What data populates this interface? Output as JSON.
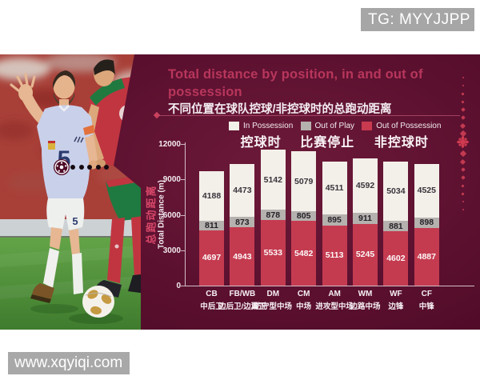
{
  "watermarks": {
    "top": "TG: MYYJJPP",
    "bottom": "www.xqyiqi.com"
  },
  "panel": {
    "title_line1": "Total distance by position, in and out of",
    "title_line2": "possession",
    "subtitle": "不同位置在球队控球/非控球时的总跑动距离"
  },
  "legend": [
    {
      "label_en": "In Possession",
      "label_zh": "控球时",
      "color": "#f3efe9"
    },
    {
      "label_en": "Out of Play",
      "label_zh": "比赛停止",
      "color": "#b5b1ae"
    },
    {
      "label_en": "Out of Possession",
      "label_zh": "非控球时",
      "color": "#c93a4f"
    }
  ],
  "photo": {
    "jersey_number": "5",
    "shorts_number": "5",
    "board_text": "ar"
  },
  "chart_data": {
    "type": "bar",
    "stacked": true,
    "title": "Total distance by position, in and out of possession",
    "subtitle_zh": "不同位置在球队控球/非控球时的总跑动距离",
    "ylabel_zh": "总跑动距离",
    "ylabel_en": "Total Distance (m)",
    "ylim": [
      0,
      12000
    ],
    "yticks": [
      0,
      3000,
      6000,
      9000,
      12000
    ],
    "grid": false,
    "legend_position": "top",
    "categories_en": [
      "CB",
      "FB/WB",
      "DM",
      "CM",
      "AM",
      "WM",
      "WF",
      "CF"
    ],
    "categories_zh": [
      "中后卫",
      "边后卫/边翼卫",
      "防守型中场",
      "中场",
      "进攻型中场",
      "边路中场",
      "边锋",
      "中锋"
    ],
    "series": [
      {
        "name": "Out of Possession",
        "name_zh": "非控球时",
        "color": "#c43b50",
        "label_color": "#fdf8f8",
        "values": [
          4697,
          4943,
          5533,
          5482,
          5113,
          5245,
          4602,
          4887
        ]
      },
      {
        "name": "Out of Play",
        "name_zh": "比赛停止",
        "color": "#b5b1ae",
        "label_color": "#242128",
        "values": [
          811,
          873,
          878,
          805,
          895,
          911,
          881,
          898
        ]
      },
      {
        "name": "In Possession",
        "name_zh": "控球时",
        "color": "#f3efe9",
        "label_color": "#3a343c",
        "values": [
          4188,
          4473,
          5142,
          5079,
          4511,
          4592,
          5034,
          4525
        ]
      }
    ]
  }
}
